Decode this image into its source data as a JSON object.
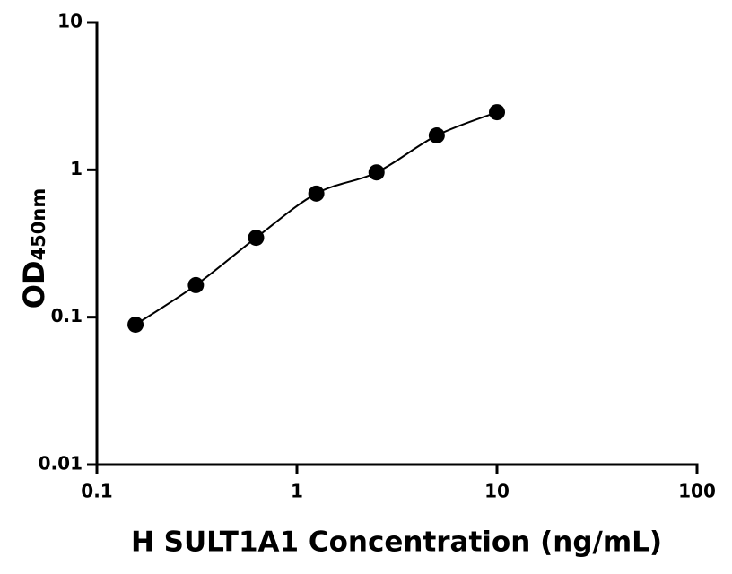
{
  "chart_data": {
    "type": "scatter",
    "x_label": "H SULT1A1 Concentration (ng/mL)",
    "y_label": "OD",
    "y_label_sub": "450nm",
    "series": [
      {
        "color": "#000000",
        "x": [
          0.156,
          0.3125,
          0.625,
          1.25,
          2.5,
          5,
          10
        ],
        "values": [
          0.089,
          0.165,
          0.346,
          0.69,
          0.96,
          1.71,
          2.46
        ]
      }
    ],
    "xlim": [
      0.1,
      100
    ],
    "xticks": [
      0.1,
      1,
      10,
      100
    ],
    "xscale": "log",
    "ylim": [
      0.01,
      10
    ],
    "yticks": [
      0.01,
      0.1,
      1,
      10
    ],
    "yscale": "log",
    "fit_curve": true,
    "grid": false
  }
}
